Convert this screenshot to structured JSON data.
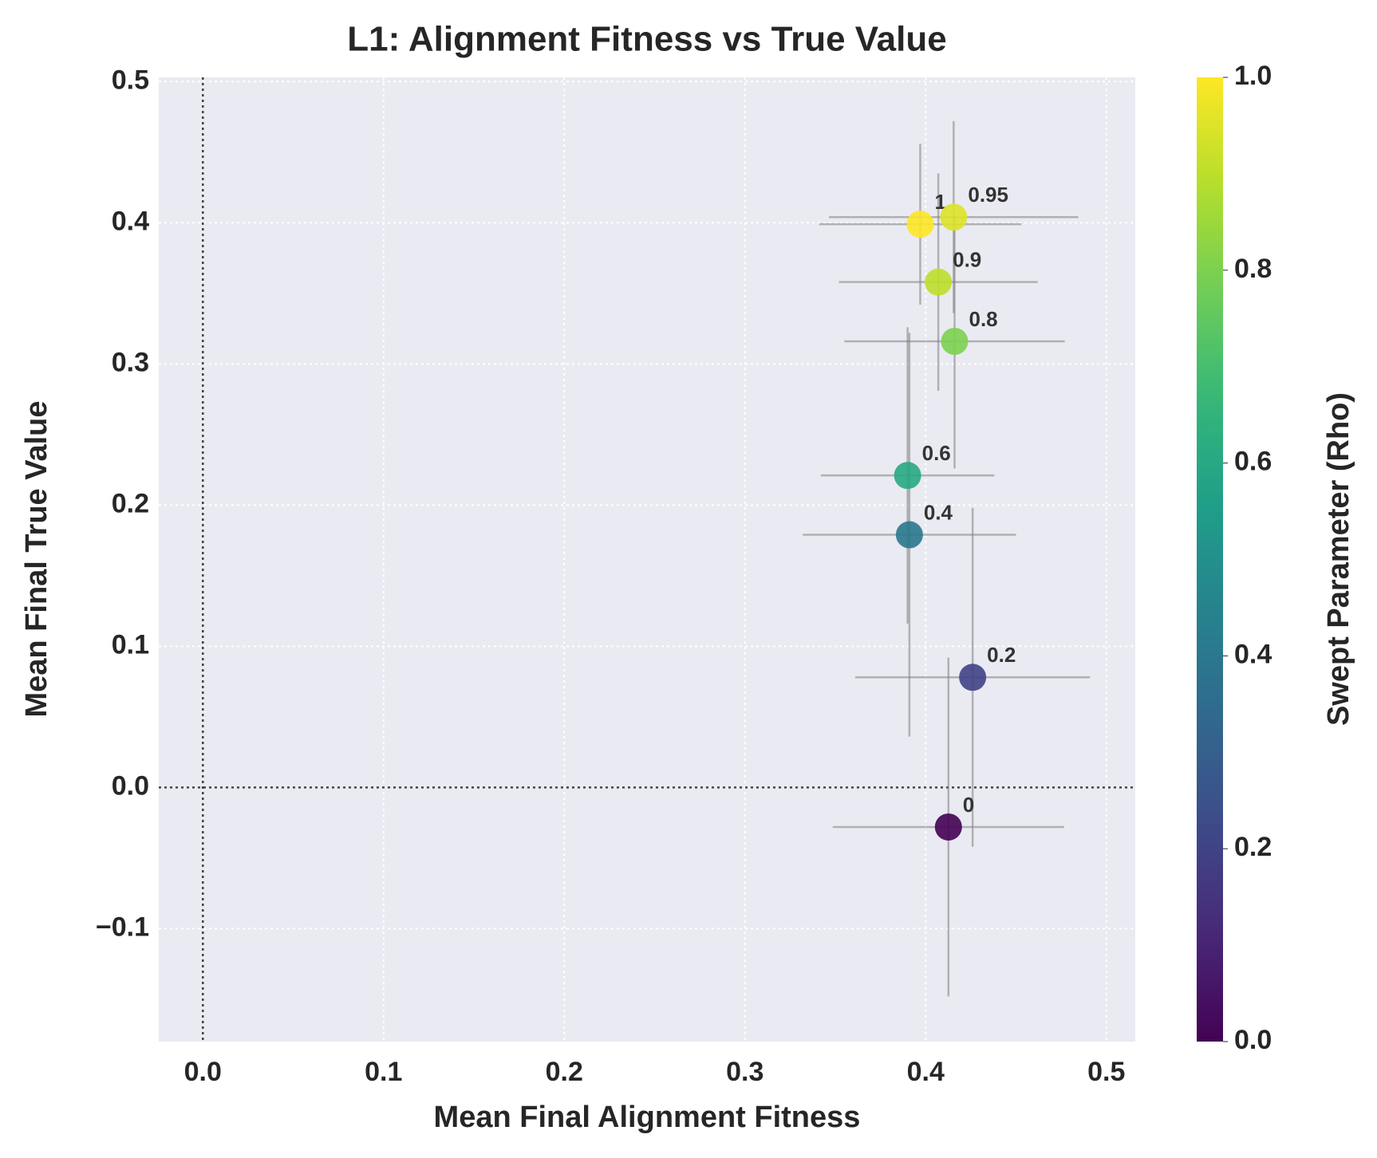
{
  "chart_data": {
    "type": "scatter",
    "title": "L1: Alignment Fitness vs True Value",
    "x_label": "Mean Final Alignment Fitness",
    "y_label": "Mean Final True Value",
    "colorbar_label": "Swept Parameter (Rho)",
    "colormap": "viridis",
    "x": [
      0.4126,
      0.426,
      0.391,
      0.39,
      0.416,
      0.407,
      0.397,
      0.4155
    ],
    "y": [
      -0.028,
      0.078,
      0.179,
      0.221,
      0.316,
      0.358,
      0.399,
      0.404
    ],
    "xerr": [
      0.064,
      0.065,
      0.059,
      0.048,
      0.061,
      0.055,
      0.056,
      0.069
    ],
    "yerr": [
      0.12,
      0.12,
      0.143,
      0.105,
      0.09,
      0.077,
      0.057,
      0.068
    ],
    "c": [
      0,
      0.2,
      0.4,
      0.6,
      0.8,
      0.9,
      1,
      0.95
    ],
    "xlim": [
      -0.0244,
      0.516
    ],
    "ylim": [
      -0.18,
      0.503
    ],
    "clim": [
      0,
      1
    ],
    "xticks": [
      {
        "value": 0,
        "label": "0.0"
      },
      0.1,
      0.2,
      0.3,
      0.4,
      0.5
    ],
    "yticks": [
      {
        "value": -0.1,
        "label": "−0.1"
      },
      {
        "value": 0,
        "label": "0.0"
      },
      0.1,
      0.2,
      0.3,
      0.4,
      0.5
    ],
    "cticks": [
      {
        "value": 0,
        "label": "0.0"
      },
      0.2,
      0.4,
      0.6,
      0.8,
      {
        "value": 1,
        "label": "1.0"
      }
    ],
    "reference_lines": {
      "x": 0,
      "y": 0
    },
    "grid": true
  }
}
